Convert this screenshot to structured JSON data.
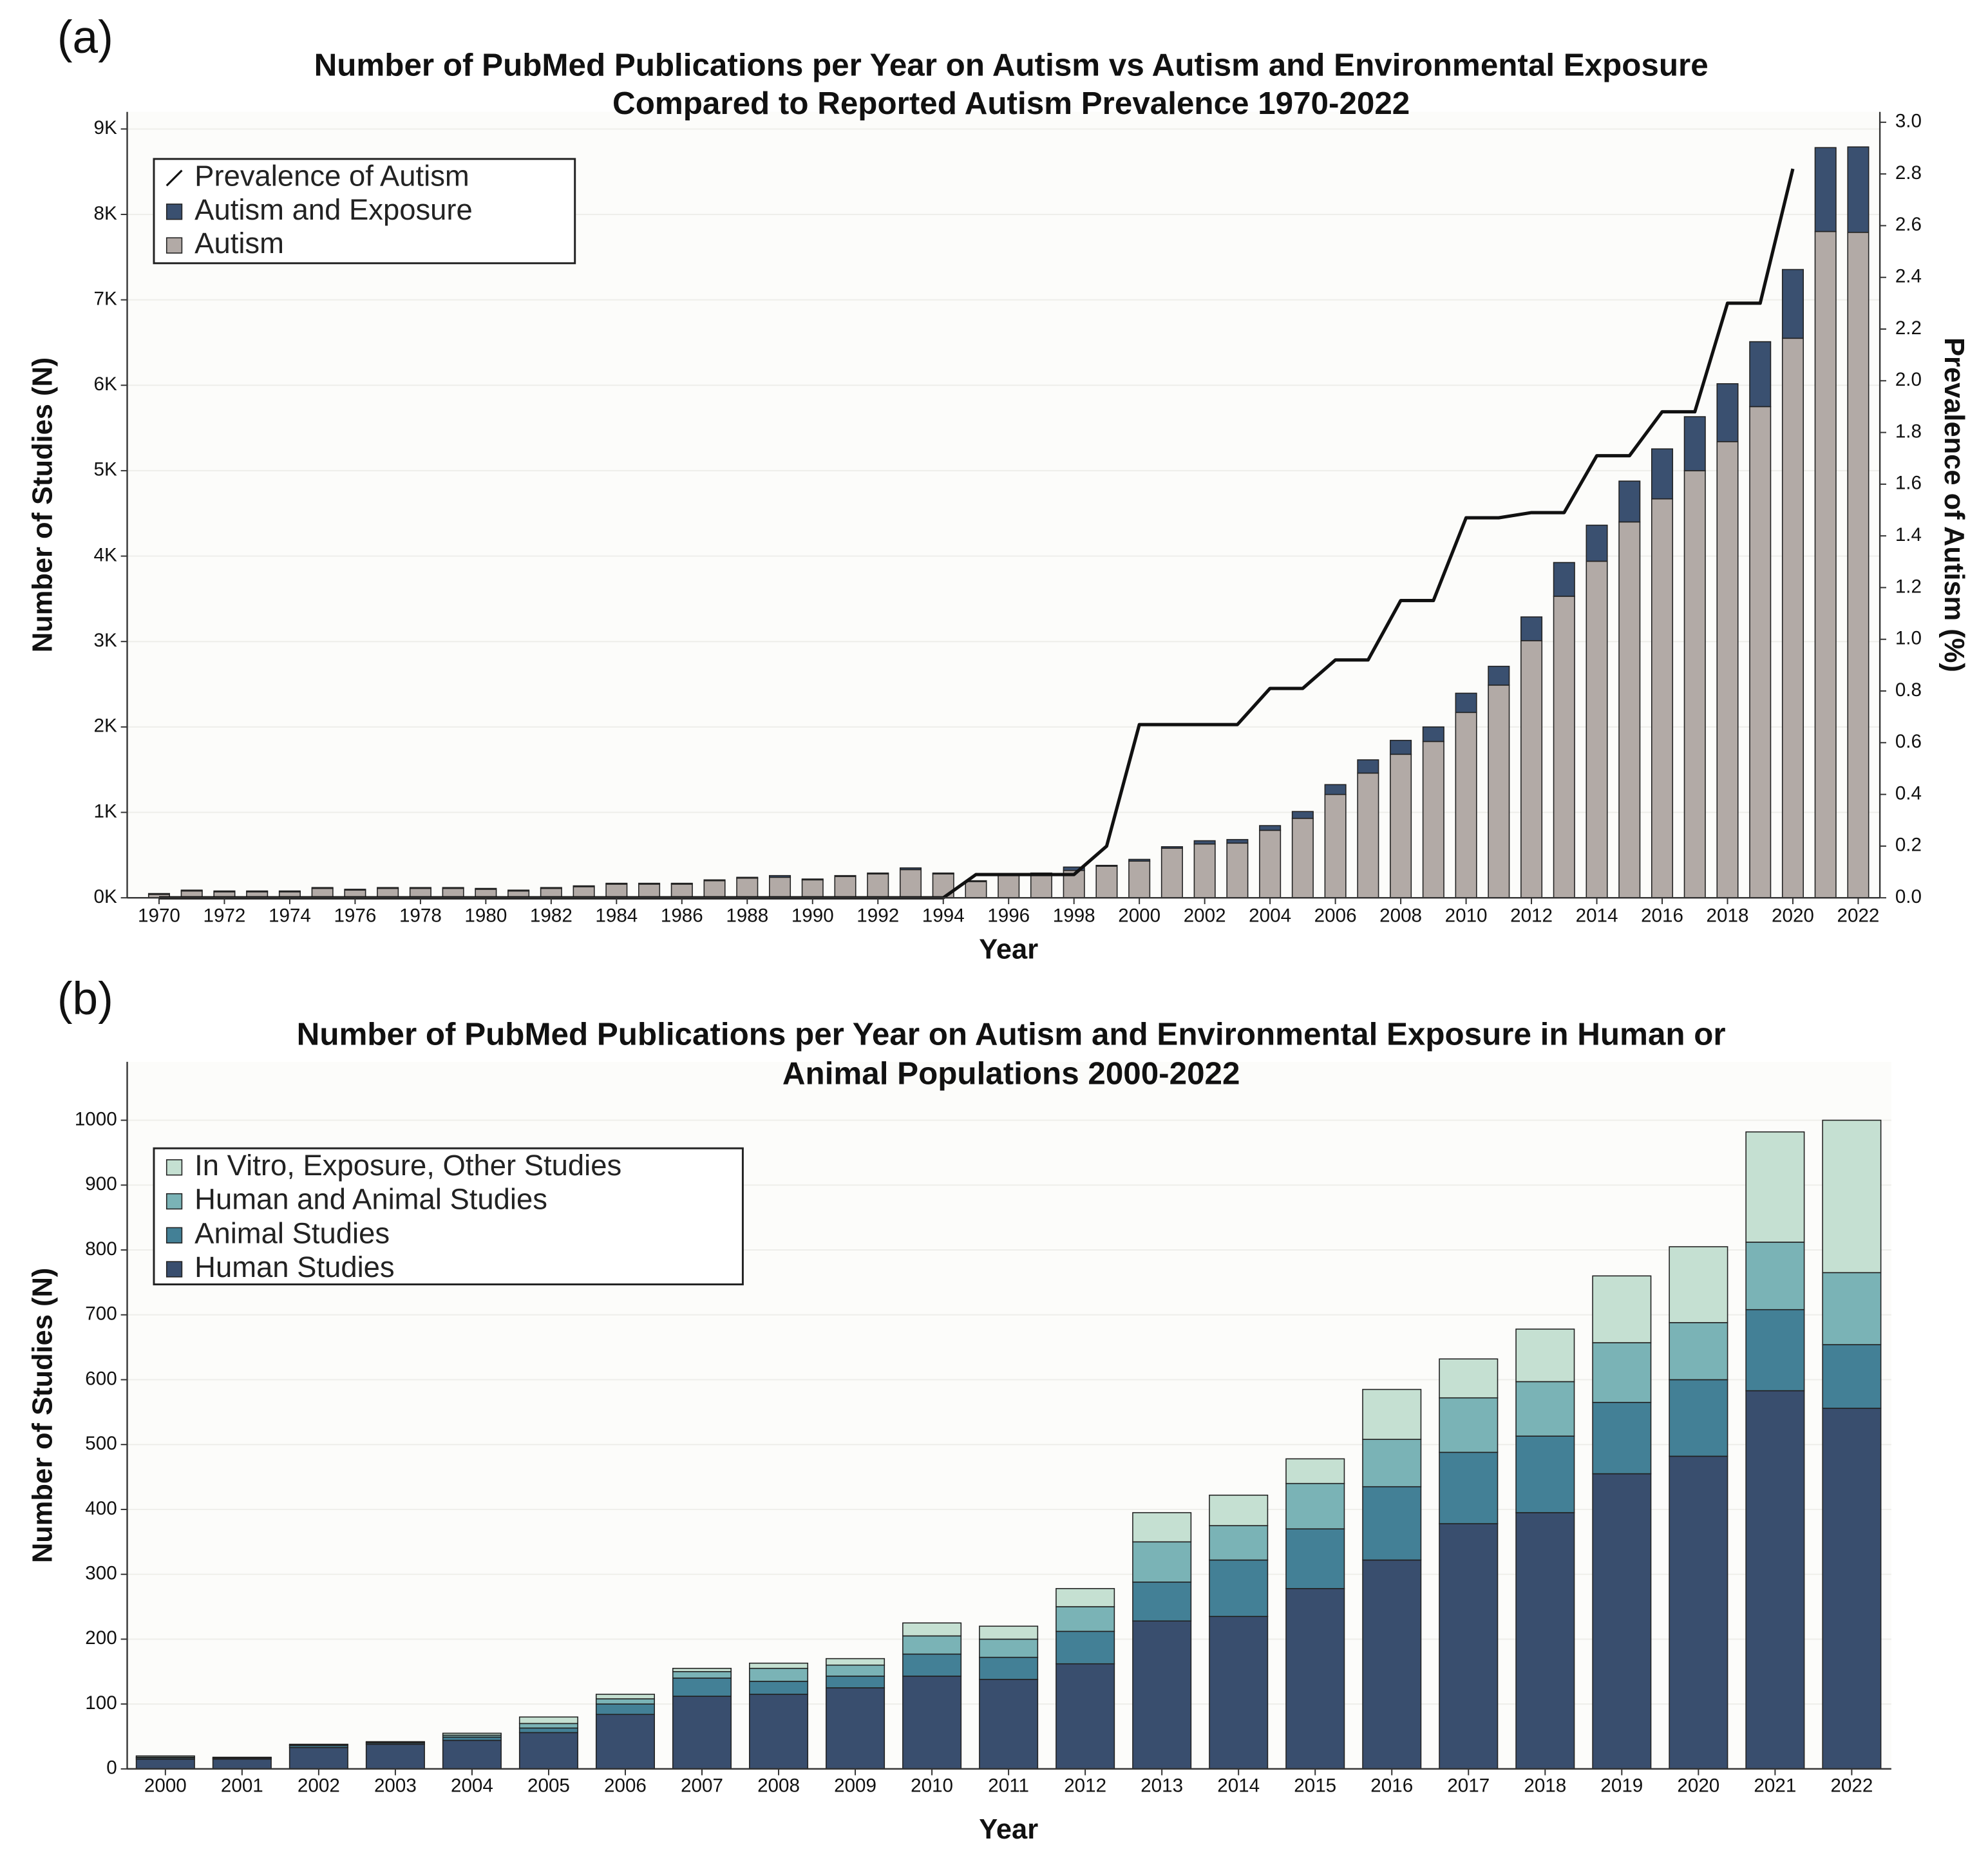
{
  "chart_data": [
    {
      "type": "bar",
      "panel_label": "(a)",
      "title": [
        "Number of PubMed Publications per Year on Autism vs Autism and Environmental Exposure",
        "Compared to Reported Autism Prevalence 1970-2022"
      ],
      "x_label": "Year",
      "y_label": "Number of Studies (N)",
      "y2_label": "Prevalence of Autism (%)",
      "categories": [
        "1970",
        null,
        "1972",
        null,
        "1974",
        null,
        "1976",
        null,
        "1978",
        null,
        "1980",
        null,
        "1982",
        null,
        "1984",
        null,
        "1986",
        null,
        "1988",
        null,
        "1990",
        null,
        "1992",
        null,
        "1994",
        null,
        "1996",
        null,
        "1998",
        null,
        "2000",
        null,
        "2002",
        null,
        "2004",
        null,
        "2006",
        null,
        "2008",
        null,
        "2010",
        null,
        "2012",
        null,
        "2014",
        null,
        "2016",
        null,
        "2018",
        null,
        "2020",
        null,
        "2022"
      ],
      "series": [
        {
          "name": "Prevalence of Autism",
          "type": "line",
          "axis": "y2",
          "color": "#111111",
          "values": [
            0,
            0,
            0,
            0,
            0,
            0,
            0,
            0,
            0,
            0,
            0,
            0,
            0,
            0,
            0,
            0,
            0,
            0,
            0,
            0,
            0,
            0,
            0,
            0,
            0,
            0.09,
            0.09,
            0.09,
            0.09,
            0.2,
            0.67,
            0.67,
            0.67,
            0.67,
            0.81,
            0.81,
            0.92,
            0.92,
            1.15,
            1.15,
            1.47,
            1.47,
            1.49,
            1.49,
            1.71,
            1.71,
            1.88,
            1.88,
            2.3,
            2.3,
            2.82,
            null,
            null
          ]
        },
        {
          "name": "Autism and Exposure",
          "type": "bar",
          "color": "#3a5070",
          "values": [
            10,
            10,
            10,
            10,
            10,
            10,
            10,
            10,
            10,
            10,
            10,
            10,
            10,
            10,
            10,
            10,
            10,
            10,
            10,
            20,
            10,
            10,
            10,
            20,
            10,
            10,
            10,
            10,
            40,
            10,
            20,
            18,
            38,
            42,
            55,
            80,
            115,
            155,
            163,
            170,
            225,
            220,
            278,
            395,
            422,
            478,
            585,
            632,
            678,
            760,
            805,
            982,
            1000
          ]
        },
        {
          "name": "Autism",
          "type": "bar",
          "color": "#b2aaa6",
          "values": [
            40,
            80,
            70,
            70,
            70,
            110,
            90,
            110,
            110,
            110,
            100,
            80,
            110,
            130,
            160,
            160,
            160,
            200,
            230,
            240,
            210,
            250,
            280,
            330,
            280,
            190,
            270,
            280,
            320,
            370,
            430,
            580,
            630,
            640,
            790,
            930,
            1210,
            1460,
            1680,
            1830,
            2170,
            2490,
            3010,
            3530,
            3940,
            4400,
            4670,
            5000,
            5340,
            5750,
            6550,
            7800,
            7790
          ]
        }
      ],
      "ylim": [
        0,
        9200
      ],
      "yticks": [
        {
          "value": 0,
          "label": "0K"
        },
        {
          "value": 1000,
          "label": "1K"
        },
        {
          "value": 2000,
          "label": "2K"
        },
        {
          "value": 3000,
          "label": "3K"
        },
        {
          "value": 4000,
          "label": "4K"
        },
        {
          "value": 5000,
          "label": "5K"
        },
        {
          "value": 6000,
          "label": "6K"
        },
        {
          "value": 7000,
          "label": "7K"
        },
        {
          "value": 8000,
          "label": "8K"
        },
        {
          "value": 9000,
          "label": "9K"
        }
      ],
      "y2lim": [
        0,
        3.04
      ],
      "y2ticks": [
        {
          "value": 0,
          "label": "0.0"
        },
        0.2,
        0.4,
        0.6,
        0.8,
        {
          "value": 1,
          "label": "1.0"
        },
        1.2,
        1.4,
        1.6,
        1.8,
        {
          "value": 2,
          "label": "2.0"
        },
        2.2,
        2.4,
        2.6,
        2.8,
        {
          "value": 3,
          "label": "3.0"
        }
      ],
      "grid": true,
      "legend": "upper left"
    },
    {
      "type": "bar",
      "panel_label": "(b)",
      "title": [
        "Number of PubMed Publications per Year on Autism and Environmental Exposure in Human or",
        "Animal Populations 2000-2022"
      ],
      "x_label": "Year",
      "y_label": "Number of Studies (N)",
      "categories": [
        "2000",
        "2001",
        "2002",
        "2003",
        "2004",
        "2005",
        "2006",
        "2007",
        "2008",
        "2009",
        "2010",
        "2011",
        "2012",
        "2013",
        "2014",
        "2015",
        "2016",
        "2017",
        "2018",
        "2019",
        "2020",
        "2021",
        "2022"
      ],
      "series": [
        {
          "name": "In Vitro, Exposure, Other Studies",
          "type": "bar",
          "color": "#c5e0d2",
          "values": [
            2,
            1,
            1,
            1,
            3,
            10,
            7,
            5,
            8,
            10,
            20,
            20,
            28,
            45,
            47,
            38,
            77,
            60,
            81,
            103,
            117,
            170,
            235
          ]
        },
        {
          "name": "Human and Animal Studies",
          "type": "bar",
          "color": "#7ab3b6",
          "values": [
            1,
            1,
            1,
            1,
            3,
            7,
            8,
            10,
            20,
            17,
            28,
            28,
            38,
            62,
            53,
            70,
            73,
            84,
            84,
            92,
            88,
            104,
            111
          ]
        },
        {
          "name": "Animal Studies",
          "type": "bar",
          "color": "#438096",
          "values": [
            2,
            1,
            3,
            2,
            5,
            7,
            16,
            28,
            20,
            18,
            34,
            34,
            50,
            60,
            87,
            92,
            113,
            110,
            118,
            110,
            118,
            125,
            98
          ]
        },
        {
          "name": "Human Studies",
          "type": "bar",
          "color": "#394e6e",
          "values": [
            15,
            15,
            33,
            38,
            44,
            56,
            84,
            112,
            115,
            125,
            143,
            138,
            162,
            228,
            235,
            278,
            322,
            378,
            395,
            455,
            482,
            583,
            556
          ]
        }
      ],
      "ylim": [
        0,
        1090
      ],
      "yticks": [
        0,
        100,
        200,
        300,
        400,
        500,
        600,
        700,
        800,
        900,
        1000
      ],
      "grid": true,
      "legend": "upper left"
    }
  ]
}
